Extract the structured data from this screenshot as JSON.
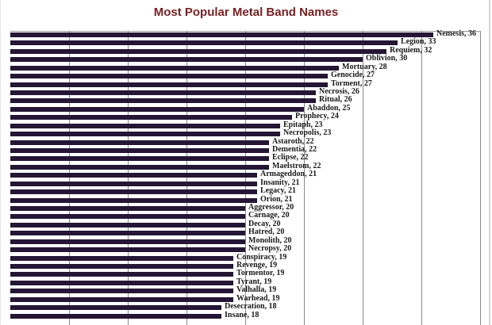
{
  "chart_data": {
    "type": "bar",
    "orientation": "horizontal",
    "title": "Most Popular Metal Band Names",
    "xlabel": "",
    "ylabel": "",
    "xlim": [
      0,
      40
    ],
    "grid": true,
    "grid_step": 5,
    "legend": null,
    "bar_color": "#241634",
    "title_color": "#7a1f24",
    "categories": [
      "Nemesis",
      "Legion",
      "Requiem",
      "Oblivion",
      "Mortuary",
      "Genocide",
      "Torment",
      "Necrosis",
      "Ritual",
      "Abaddon",
      "Prophecy",
      "Epitaph",
      "Necropolis",
      "Astaroth",
      "Dementia",
      "Eclipse",
      "Maelstrom",
      "Armageddon",
      "Insanity",
      "Legacy",
      "Orion",
      "Aggressor",
      "Carnage",
      "Decay",
      "Hatred",
      "Monolith",
      "Necropsy",
      "Conspiracy",
      "Revenge",
      "Tormentor",
      "Tyrant",
      "Valhalla",
      "Warhead",
      "Desecration",
      "Insane"
    ],
    "values": [
      36,
      33,
      32,
      30,
      28,
      27,
      27,
      26,
      26,
      25,
      24,
      23,
      23,
      22,
      22,
      22,
      22,
      21,
      21,
      21,
      21,
      20,
      20,
      20,
      20,
      20,
      20,
      19,
      19,
      19,
      19,
      19,
      19,
      18,
      18
    ],
    "labels": [
      "Nemesis, 36",
      "Legion, 33",
      "Requiem, 32",
      "Oblivion, 30",
      "Mortuary, 28",
      "Genocide, 27",
      "Torment, 27",
      "Necrosis, 26",
      "Ritual, 26",
      "Abaddon, 25",
      "Prophecy, 24",
      "Epitaph, 23",
      "Necropolis, 23",
      "Astaroth, 22",
      "Dementia, 22",
      "Eclipse, 22",
      "Maelstrom, 22",
      "Armageddon, 21",
      "Insanity, 21",
      "Legacy, 21",
      "Orion, 21",
      "Aggressor, 20",
      "Carnage, 20",
      "Decay, 20",
      "Hatred, 20",
      "Monolith, 20",
      "Necropsy, 20",
      "Conspiracy, 19",
      "Revenge, 19",
      "Tormentor, 19",
      "Tyrant, 19",
      "Valhalla, 19",
      "Warhead, 19",
      "Desecration, 18",
      "Insane, 18"
    ]
  }
}
